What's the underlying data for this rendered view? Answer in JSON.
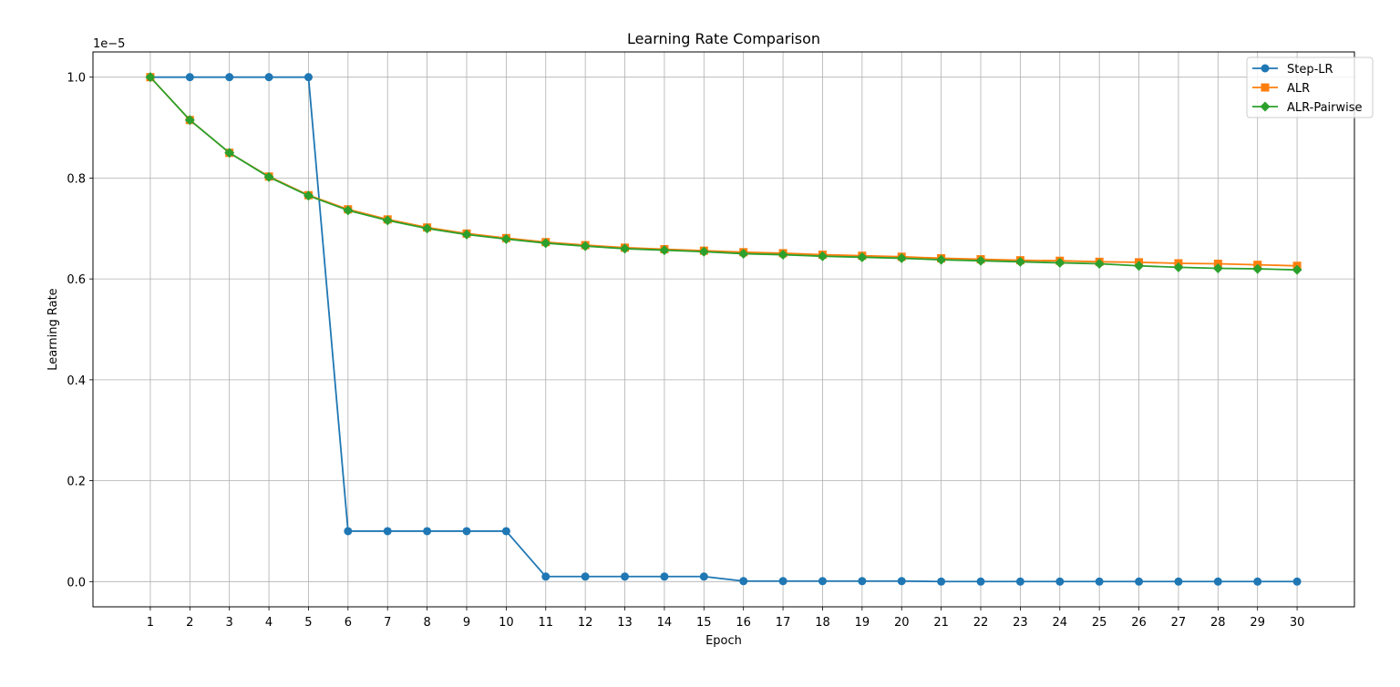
{
  "chart_data": {
    "type": "line",
    "title": "Learning Rate Comparison",
    "xlabel": "Epoch",
    "ylabel": "Learning Rate",
    "y_offset_label": "1e−5",
    "y_scale_factor": 1e-05,
    "x": [
      1,
      2,
      3,
      4,
      5,
      6,
      7,
      8,
      9,
      10,
      11,
      12,
      13,
      14,
      15,
      16,
      17,
      18,
      19,
      20,
      21,
      22,
      23,
      24,
      25,
      26,
      27,
      28,
      29,
      30
    ],
    "xlim": [
      -0.45,
      31.45
    ],
    "ylim": [
      -0.05,
      1.05
    ],
    "yticks": [
      0.0,
      0.2,
      0.4,
      0.6,
      0.8,
      1.0
    ],
    "ytick_labels": [
      "0.0",
      "0.2",
      "0.4",
      "0.6",
      "0.8",
      "1.0"
    ],
    "grid": true,
    "legend_position": "top-right",
    "series": [
      {
        "name": "Step-LR",
        "color": "#1f77b4",
        "marker": "circle",
        "values": [
          1.0,
          1.0,
          1.0,
          1.0,
          1.0,
          0.1,
          0.1,
          0.1,
          0.1,
          0.1,
          0.01,
          0.01,
          0.01,
          0.01,
          0.01,
          0.001,
          0.001,
          0.001,
          0.001,
          0.001,
          0.0001,
          0.0001,
          0.0001,
          0.0001,
          0.0001,
          0.0001,
          0.0001,
          0.0001,
          0.0001,
          0.0001
        ]
      },
      {
        "name": "ALR",
        "color": "#ff7f0e",
        "marker": "square",
        "values": [
          1.0,
          0.915,
          0.85,
          0.803,
          0.766,
          0.738,
          0.718,
          0.702,
          0.69,
          0.681,
          0.673,
          0.667,
          0.662,
          0.659,
          0.656,
          0.653,
          0.651,
          0.648,
          0.646,
          0.644,
          0.641,
          0.639,
          0.637,
          0.636,
          0.634,
          0.633,
          0.631,
          0.63,
          0.628,
          0.626
        ]
      },
      {
        "name": "ALR-Pairwise",
        "color": "#2ca02c",
        "marker": "diamond",
        "values": [
          1.0,
          0.915,
          0.85,
          0.802,
          0.765,
          0.736,
          0.716,
          0.7,
          0.688,
          0.679,
          0.671,
          0.665,
          0.66,
          0.657,
          0.654,
          0.65,
          0.648,
          0.645,
          0.643,
          0.641,
          0.638,
          0.636,
          0.634,
          0.632,
          0.63,
          0.626,
          0.623,
          0.621,
          0.62,
          0.618
        ]
      }
    ]
  }
}
